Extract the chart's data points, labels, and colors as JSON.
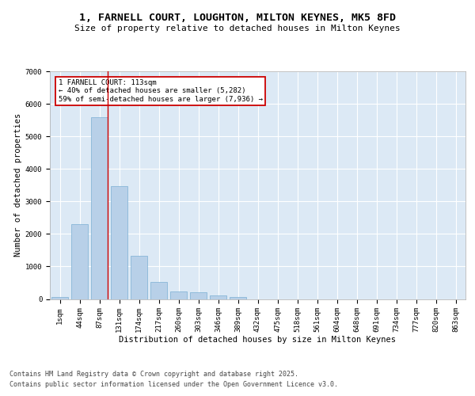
{
  "title_line1": "1, FARNELL COURT, LOUGHTON, MILTON KEYNES, MK5 8FD",
  "title_line2": "Size of property relative to detached houses in Milton Keynes",
  "xlabel": "Distribution of detached houses by size in Milton Keynes",
  "ylabel": "Number of detached properties",
  "categories": [
    "1sqm",
    "44sqm",
    "87sqm",
    "131sqm",
    "174sqm",
    "217sqm",
    "260sqm",
    "303sqm",
    "346sqm",
    "389sqm",
    "432sqm",
    "475sqm",
    "518sqm",
    "561sqm",
    "604sqm",
    "648sqm",
    "691sqm",
    "734sqm",
    "777sqm",
    "820sqm",
    "863sqm"
  ],
  "values": [
    70,
    2300,
    5600,
    3470,
    1320,
    530,
    220,
    195,
    100,
    55,
    0,
    0,
    0,
    0,
    0,
    0,
    0,
    0,
    0,
    0,
    0
  ],
  "bar_color": "#b8d0e8",
  "bar_edge_color": "#7aafd4",
  "background_color": "#dce9f5",
  "grid_color": "#ffffff",
  "vline_color": "#cc0000",
  "annotation_text": "1 FARNELL COURT: 113sqm\n← 40% of detached houses are smaller (5,282)\n59% of semi-detached houses are larger (7,936) →",
  "annotation_box_color": "#cc0000",
  "ylim": [
    0,
    7000
  ],
  "yticks": [
    0,
    1000,
    2000,
    3000,
    4000,
    5000,
    6000,
    7000
  ],
  "footer_line1": "Contains HM Land Registry data © Crown copyright and database right 2025.",
  "footer_line2": "Contains public sector information licensed under the Open Government Licence v3.0.",
  "title_fontsize": 9.5,
  "subtitle_fontsize": 8,
  "axis_label_fontsize": 7.5,
  "tick_fontsize": 6.5,
  "annotation_fontsize": 6.5,
  "footer_fontsize": 6
}
